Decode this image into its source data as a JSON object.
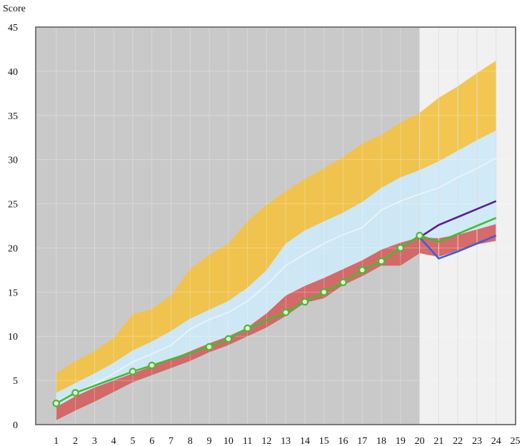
{
  "chart_data": {
    "type": "area",
    "title": "",
    "xlabel": "",
    "ylabel": "Score",
    "xlim": [
      0,
      25
    ],
    "ylim": [
      0,
      45
    ],
    "x_ticks": [
      1,
      2,
      3,
      4,
      5,
      6,
      7,
      8,
      9,
      10,
      11,
      12,
      13,
      14,
      15,
      16,
      17,
      18,
      19,
      20,
      21,
      22,
      23,
      24,
      25
    ],
    "y_ticks": [
      0,
      5,
      10,
      15,
      20,
      25,
      30,
      35,
      40,
      45
    ],
    "grid": true,
    "legend": "none",
    "shaded_region": {
      "x_from": 20,
      "x_to": 25,
      "color": "#f1f1f1"
    },
    "background_color": "#c9c9c9",
    "bands": [
      {
        "color": "#f2c242",
        "x": [
          1,
          2,
          3,
          4,
          5,
          6,
          7,
          8,
          9,
          10,
          11,
          12,
          13,
          14,
          15,
          16,
          17,
          18,
          19,
          20,
          21,
          22,
          23,
          24
        ],
        "upper": [
          5.8,
          7.2,
          8.3,
          9.8,
          12.5,
          13.1,
          14.6,
          17.6,
          19.2,
          20.5,
          23,
          24.9,
          26.4,
          27.8,
          29,
          30.3,
          31.8,
          32.8,
          34.2,
          35.3,
          37,
          38.3,
          39.8,
          41.2
        ],
        "lower": [
          3.6,
          4.7,
          5.8,
          7,
          8.4,
          9.4,
          10.6,
          12,
          13,
          14,
          15.5,
          17.5,
          20.5,
          22,
          23,
          24,
          25.2,
          26.8,
          28,
          28.8,
          29.8,
          31,
          32.2,
          33.3
        ]
      },
      {
        "color": "#cde9f7",
        "x": [
          1,
          2,
          3,
          4,
          5,
          6,
          7,
          8,
          9,
          10,
          11,
          12,
          13,
          14,
          15,
          16,
          17,
          18,
          19,
          20,
          21,
          22,
          23,
          24
        ],
        "upper": [
          3.6,
          4.7,
          5.8,
          7,
          8.4,
          9.4,
          10.6,
          12,
          13,
          14,
          15.5,
          17.5,
          20.5,
          22,
          23,
          24,
          25.2,
          26.8,
          28,
          28.8,
          29.8,
          31,
          32.2,
          33.3
        ],
        "lower": [
          0.8,
          2,
          3,
          4,
          5,
          5.8,
          6.6,
          7.6,
          8.6,
          9.4,
          10.3,
          11.5,
          13,
          14.2,
          15,
          16,
          17,
          18,
          19,
          20.4,
          20.8,
          21.3,
          21.8,
          22.3
        ]
      },
      {
        "color": "#d45f5d",
        "x": [
          1,
          2,
          3,
          4,
          5,
          6,
          7,
          8,
          9,
          10,
          11,
          12,
          13,
          14,
          15,
          16,
          17,
          18,
          19,
          20,
          21,
          22,
          23,
          24
        ],
        "upper": [
          2,
          3.2,
          4.2,
          5,
          5.8,
          6.6,
          7.4,
          8.3,
          9.2,
          10,
          11,
          12.6,
          14.6,
          15.7,
          16.6,
          17.6,
          18.6,
          19.8,
          20.6,
          21.2,
          21.1,
          21.5,
          22.1,
          22.7
        ],
        "lower": [
          0.5,
          1.6,
          2.6,
          3.7,
          4.8,
          5.6,
          6.4,
          7.2,
          8.2,
          9,
          10,
          11,
          12.3,
          13.8,
          14.3,
          15.8,
          16.8,
          18,
          18,
          19.4,
          19,
          19.7,
          20.4,
          20.8
        ]
      }
    ],
    "series": [
      {
        "color": "#e9f3f7",
        "x": [
          1,
          2,
          3,
          4,
          5,
          6,
          7,
          8,
          9,
          10,
          11,
          12,
          13,
          14,
          15,
          16,
          17,
          18,
          19,
          20,
          21,
          22,
          23,
          24
        ],
        "values": [
          2.6,
          3.6,
          4.6,
          5.8,
          7.1,
          8,
          9,
          10.8,
          11.9,
          12.7,
          14,
          15.8,
          18,
          19.3,
          20.5,
          21.5,
          22.3,
          24.3,
          25.3,
          26.1,
          26.8,
          28,
          29,
          30.2
        ]
      },
      {
        "color": "#5b1c9a",
        "x": [
          20,
          21,
          22,
          23,
          24
        ],
        "values": [
          21.2,
          22.6,
          23.5,
          24.4,
          25.3
        ]
      },
      {
        "color": "#3a5fe0",
        "x": [
          20,
          21,
          22,
          23,
          24
        ],
        "values": [
          21.2,
          18.8,
          19.6,
          20.5,
          21.4
        ]
      },
      {
        "color": "#44bb33",
        "x": [
          1,
          2,
          5,
          6,
          9,
          10,
          11,
          13,
          14,
          15,
          16,
          17,
          18,
          19,
          20,
          21,
          22,
          23,
          24
        ],
        "values": [
          2.4,
          3.6,
          6,
          6.7,
          8.8,
          9.7,
          10.9,
          12.7,
          13.9,
          15,
          16.1,
          17.5,
          18.5,
          20,
          21.4,
          20.7,
          21.6,
          22.5,
          23.4
        ],
        "markers": [
          1,
          2,
          5,
          6,
          9,
          10,
          11,
          13,
          14,
          15,
          16,
          17,
          18,
          19,
          20
        ]
      }
    ]
  }
}
